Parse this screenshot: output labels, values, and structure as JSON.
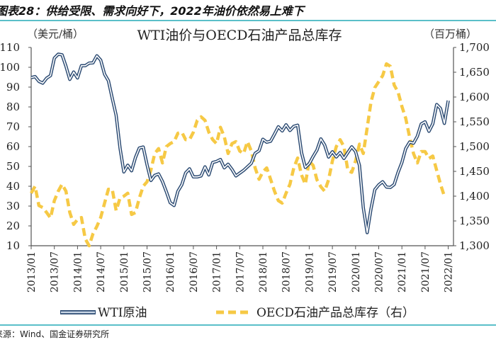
{
  "figure_title": "图表28：供给受限、需求向好下，2022年油价依然易上难下",
  "source": "来源：Wind、国金证券研究所",
  "colors": {
    "wti": "#2b4a72",
    "oecd": "#f6c945",
    "rule": "#5bbfc9"
  },
  "chart_data": {
    "type": "line",
    "title": "WTI油价与OECD石油产品总库存",
    "ylabel_left": "（美元/桶）",
    "ylabel_right": "（百万桶）",
    "ylim_left": [
      10,
      110
    ],
    "ylim_right": [
      1300,
      1700
    ],
    "yticks_left": [
      "110",
      "100",
      "90",
      "80",
      "70",
      "60",
      "50",
      "40",
      "30",
      "20",
      "10"
    ],
    "yticks_right": [
      "1,700",
      "1,650",
      "1,600",
      "1,550",
      "1,500",
      "1,450",
      "1,400",
      "1,350",
      "1,300"
    ],
    "x_start": "2013/01",
    "x_frequency": "monthly",
    "xticks": [
      "2013/01",
      "2013/07",
      "2014/01",
      "2014/07",
      "2015/01",
      "2015/07",
      "2016/01",
      "2016/07",
      "2017/01",
      "2017/07",
      "2018/01",
      "2018/07",
      "2019/01",
      "2019/07",
      "2020/01",
      "2020/07",
      "2021/01",
      "2021/07",
      "2022/01"
    ],
    "grid": false,
    "legend_position": "bottom",
    "series": [
      {
        "name": "WTI原油",
        "axis": "left",
        "style": "double-line",
        "values": [
          94.8,
          95.3,
          92.9,
          92.0,
          94.5,
          95.8,
          104.6,
          106.6,
          106.3,
          100.5,
          93.9,
          97.6,
          94.6,
          100.8,
          100.8,
          102.1,
          102.2,
          105.8,
          103.6,
          96.5,
          93.2,
          84.4,
          75.8,
          59.3,
          47.2,
          50.6,
          47.8,
          54.5,
          59.3,
          59.8,
          50.9,
          42.9,
          45.5,
          46.2,
          42.4,
          37.2,
          31.7,
          30.3,
          37.5,
          40.8,
          46.7,
          48.8,
          44.7,
          44.7,
          45.2,
          49.8,
          45.7,
          52.0,
          52.5,
          53.5,
          49.3,
          51.1,
          48.5,
          45.2,
          46.6,
          48.0,
          49.8,
          51.6,
          56.6,
          57.9,
          63.7,
          62.2,
          62.7,
          66.3,
          70.0,
          67.9,
          71.0,
          68.1,
          70.2,
          70.8,
          57.0,
          49.5,
          51.4,
          55.0,
          58.2,
          63.9,
          60.8,
          54.7,
          57.4,
          54.8,
          57.0,
          54.0,
          57.0,
          59.9,
          57.5,
          50.5,
          29.2,
          16.6,
          28.6,
          38.3,
          40.7,
          42.3,
          39.6,
          39.4,
          40.9,
          47.0,
          52.0,
          59.0,
          62.3,
          61.7,
          65.2,
          71.4,
          72.5,
          67.7,
          71.5,
          81.2,
          79.2,
          71.7,
          83.2
        ]
      },
      {
        "name": "OECD石油产品总库存（右）",
        "axis": "right",
        "style": "dashed",
        "values": [
          1406,
          1420,
          1381,
          1377,
          1367,
          1356,
          1391,
          1410,
          1424,
          1410,
          1367,
          1343,
          1353,
          1357,
          1314,
          1300,
          1324,
          1339,
          1357,
          1386,
          1414,
          1414,
          1371,
          1396,
          1400,
          1406,
          1363,
          1367,
          1396,
          1420,
          1429,
          1453,
          1486,
          1496,
          1467,
          1500,
          1506,
          1510,
          1527,
          1529,
          1514,
          1514,
          1529,
          1553,
          1560,
          1553,
          1529,
          1514,
          1506,
          1539,
          1520,
          1486,
          1506,
          1510,
          1491,
          1486,
          1510,
          1491,
          1457,
          1434,
          1449,
          1457,
          1434,
          1410,
          1391,
          1386,
          1406,
          1424,
          1457,
          1477,
          1443,
          1424,
          1471,
          1462,
          1433,
          1419,
          1410,
          1433,
          1471,
          1500,
          1514,
          1500,
          1452,
          1448,
          1471,
          1505,
          1486,
          1538,
          1590,
          1619,
          1631,
          1643,
          1667,
          1662,
          1624,
          1610,
          1581,
          1557,
          1519,
          1486,
          1467,
          1490,
          1490,
          1476,
          1481,
          1452,
          1424,
          1400
        ]
      }
    ]
  }
}
